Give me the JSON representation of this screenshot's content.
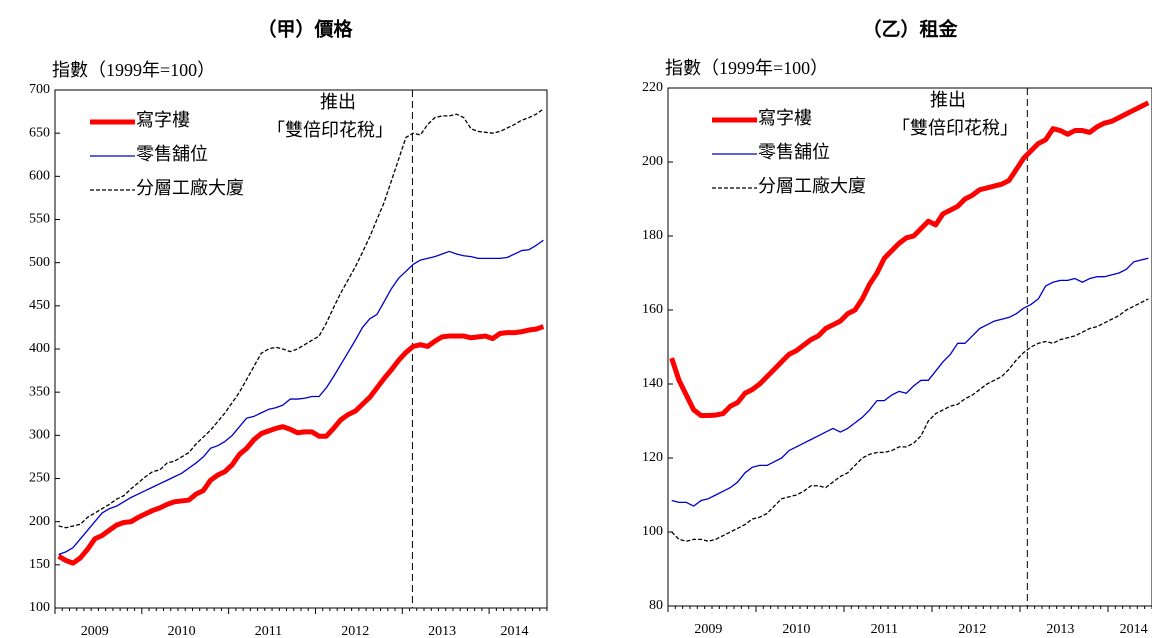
{
  "chart_data": [
    {
      "type": "line",
      "title": "（甲）價格",
      "y_label": "指數（1999年=100）",
      "annotations": [
        "推出",
        "「雙倍印花稅」"
      ],
      "categories": [
        null,
        null,
        null,
        null,
        null,
        "2009",
        null,
        null,
        null,
        null,
        null,
        null,
        null,
        null,
        null,
        null,
        null,
        "2010",
        null,
        null,
        null,
        null,
        null,
        null,
        null,
        null,
        null,
        null,
        null,
        "2011",
        null,
        null,
        null,
        null,
        null,
        null,
        null,
        null,
        null,
        null,
        null,
        "2012",
        null,
        null,
        null,
        null,
        null,
        null,
        null,
        null,
        null,
        null,
        null,
        "2013",
        null,
        null,
        null,
        null,
        null,
        null,
        null,
        null,
        null,
        "2014",
        null,
        null,
        null,
        null
      ],
      "ylim": [
        100,
        700
      ],
      "yticks": [
        100,
        150,
        200,
        250,
        300,
        350,
        400,
        450,
        500,
        550,
        600,
        650,
        700
      ],
      "legend": "upper left",
      "series": [
        {
          "name": "寫字樓",
          "color": "#ff0000",
          "linestyle": "solid",
          "values": [
            160,
            155,
            152,
            158,
            168,
            180,
            184,
            190,
            196,
            199,
            200,
            205,
            209,
            213,
            216,
            220,
            223,
            224,
            225,
            232,
            236,
            248,
            254,
            258,
            266,
            278,
            285,
            295,
            302,
            305,
            308,
            310,
            307,
            303,
            304,
            304,
            299,
            299,
            308,
            318,
            324,
            328,
            336,
            344,
            355,
            366,
            376,
            387,
            396,
            403,
            405,
            403,
            409,
            414,
            415,
            415,
            415,
            413,
            414,
            415,
            412,
            418,
            419,
            419,
            420,
            422,
            423,
            426
          ]
        },
        {
          "name": "零售舖位",
          "color": "#0000cc",
          "linestyle": "solid",
          "values": [
            162,
            165,
            170,
            180,
            190,
            200,
            210,
            215,
            218,
            223,
            228,
            232,
            236,
            240,
            244,
            248,
            252,
            256,
            262,
            268,
            275,
            285,
            288,
            293,
            300,
            310,
            320,
            322,
            326,
            330,
            332,
            335,
            342,
            342,
            343,
            345,
            345,
            355,
            368,
            382,
            396,
            410,
            425,
            435,
            440,
            455,
            470,
            482,
            490,
            498,
            503,
            505,
            507,
            510,
            513,
            510,
            508,
            507,
            505,
            505,
            505,
            505,
            506,
            510,
            514,
            515,
            520,
            526
          ]
        },
        {
          "name": "分層工廠大廈",
          "color": "#000000",
          "linestyle": "dashed",
          "values": [
            195,
            193,
            195,
            197,
            205,
            210,
            215,
            220,
            226,
            230,
            238,
            245,
            252,
            258,
            260,
            268,
            270,
            275,
            280,
            290,
            298,
            306,
            316,
            326,
            338,
            350,
            365,
            380,
            395,
            400,
            402,
            400,
            397,
            400,
            405,
            410,
            415,
            430,
            448,
            465,
            480,
            495,
            512,
            530,
            550,
            570,
            595,
            620,
            645,
            650,
            648,
            660,
            668,
            670,
            670,
            672,
            668,
            655,
            652,
            651,
            650,
            652,
            656,
            660,
            665,
            668,
            672,
            678
          ]
        }
      ]
    },
    {
      "type": "line",
      "title": "（乙）租金",
      "y_label": "指數（1999年=100）",
      "annotations": [
        "推出",
        "「雙倍印花稅」"
      ],
      "categories": [
        null,
        null,
        null,
        null,
        null,
        "2009",
        null,
        null,
        null,
        null,
        null,
        null,
        null,
        null,
        null,
        null,
        null,
        "2010",
        null,
        null,
        null,
        null,
        null,
        null,
        null,
        null,
        null,
        null,
        null,
        "2011",
        null,
        null,
        null,
        null,
        null,
        null,
        null,
        null,
        null,
        null,
        null,
        "2012",
        null,
        null,
        null,
        null,
        null,
        null,
        null,
        null,
        null,
        null,
        null,
        "2013",
        null,
        null,
        null,
        null,
        null,
        null,
        null,
        null,
        null,
        "2014",
        null,
        null
      ],
      "ylim": [
        80,
        220
      ],
      "yticks": [
        80,
        100,
        120,
        140,
        160,
        180,
        200,
        220
      ],
      "legend": "upper left",
      "series": [
        {
          "name": "寫字樓",
          "color": "#ff0000",
          "linestyle": "solid",
          "values": [
            147,
            141,
            137,
            133,
            131.5,
            131.5,
            131.6,
            132,
            134,
            135,
            137.5,
            138.5,
            140,
            142,
            144,
            146,
            148,
            149,
            150.5,
            152,
            153,
            155,
            156,
            157,
            159,
            160,
            163,
            167,
            170,
            174,
            176,
            178,
            179.5,
            180,
            182,
            184,
            183,
            186,
            187,
            188,
            190,
            191,
            192.5,
            193,
            193.5,
            194,
            195,
            198,
            201,
            203,
            205,
            206,
            209,
            208.5,
            207.5,
            208.5,
            208.5,
            208,
            209.5,
            210.5,
            211,
            212,
            213,
            214,
            215,
            216
          ]
        },
        {
          "name": "零售舖位",
          "color": "#0000cc",
          "linestyle": "solid",
          "values": [
            108.5,
            108,
            108,
            107,
            108.5,
            109,
            110,
            111,
            112,
            113.5,
            116,
            117.5,
            118,
            118,
            119,
            120,
            122,
            123,
            124,
            125,
            126,
            127,
            128,
            127,
            128,
            129.5,
            131,
            133,
            135.5,
            135.5,
            137,
            138,
            137.5,
            139.5,
            141,
            141,
            143.5,
            146,
            148,
            151,
            151,
            153,
            155,
            156,
            157,
            157.5,
            158,
            159,
            160.5,
            161.5,
            163,
            166.5,
            167.5,
            168,
            168,
            168.5,
            167.5,
            168.5,
            169,
            169,
            169.5,
            170,
            171,
            173,
            173.5,
            174
          ]
        },
        {
          "name": "分層工廠大廈",
          "color": "#000000",
          "linestyle": "dashed",
          "values": [
            100,
            98,
            97.5,
            98,
            98,
            97.5,
            98,
            99,
            100,
            101,
            102,
            103.5,
            104,
            105,
            107,
            109,
            109.5,
            110,
            111,
            112.5,
            112.5,
            112,
            113.5,
            115,
            116,
            118,
            120,
            121,
            121.5,
            121.5,
            122,
            123,
            123,
            124,
            126,
            130,
            132,
            133,
            134,
            134.5,
            136,
            137,
            138.5,
            140,
            141,
            142,
            144,
            146.5,
            148.5,
            150,
            151,
            151.5,
            151,
            152,
            152.5,
            153,
            154,
            155,
            155.5,
            156.5,
            157.5,
            158.5,
            160,
            161,
            162,
            163
          ]
        }
      ]
    }
  ]
}
